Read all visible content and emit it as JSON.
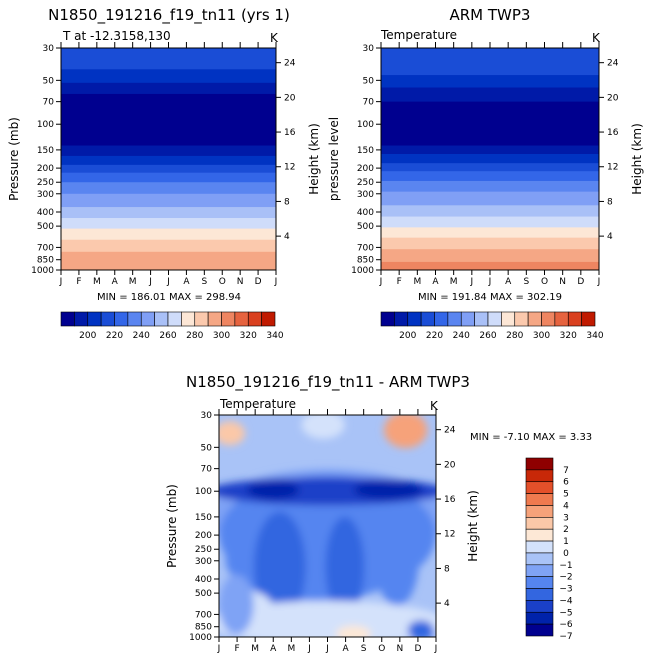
{
  "chart_data": [
    {
      "type": "heatmap",
      "title": "N1850_191216_f19_tn11 (yrs 1)",
      "subtitle": "T at -12.3158,130",
      "units": "K",
      "ylabel": "Pressure (mb)",
      "y2label": "Height (km)",
      "x_ticklabels": [
        "J",
        "F",
        "M",
        "A",
        "M",
        "J",
        "J",
        "A",
        "S",
        "O",
        "N",
        "D",
        "J"
      ],
      "y_ticklabels": [
        "30",
        "50",
        "70",
        "100",
        "150",
        "200",
        "250",
        "300",
        "400",
        "500",
        "700",
        "850",
        "1000"
      ],
      "y_tickvalues": [
        30,
        50,
        70,
        100,
        150,
        200,
        250,
        300,
        400,
        500,
        700,
        850,
        1000
      ],
      "height_ticklabels": [
        "4",
        "8",
        "12",
        "16",
        "20",
        "24"
      ],
      "height_tickvalues": [
        4,
        8,
        12,
        16,
        20,
        24
      ],
      "stats_text": "MIN = 186.01 MAX = 298.94",
      "min": 186.01,
      "max": 298.94,
      "colorbar": {
        "levels": [
          190,
          200,
          210,
          220,
          230,
          240,
          250,
          260,
          270,
          280,
          290,
          300,
          310,
          320,
          330,
          340
        ],
        "labels": [
          "200",
          "220",
          "240",
          "260",
          "280",
          "300",
          "320",
          "340"
        ]
      }
    },
    {
      "type": "heatmap",
      "title": "ARM TWP3",
      "subtitle": "Temperature",
      "units": "K",
      "ylabel": "pressure level",
      "y2label": "Height (km)",
      "x_ticklabels": [
        "J",
        "F",
        "M",
        "A",
        "M",
        "J",
        "J",
        "A",
        "S",
        "O",
        "N",
        "D",
        "J"
      ],
      "y_ticklabels": [
        "30",
        "50",
        "70",
        "100",
        "150",
        "200",
        "250",
        "300",
        "400",
        "500",
        "700",
        "850",
        "1000"
      ],
      "height_ticklabels": [
        "4",
        "8",
        "12",
        "16",
        "20",
        "24"
      ],
      "stats_text": "MIN = 191.84 MAX = 302.19",
      "min": 191.84,
      "max": 302.19,
      "colorbar": {
        "levels": [
          190,
          200,
          210,
          220,
          230,
          240,
          250,
          260,
          270,
          280,
          290,
          300,
          310,
          320,
          330,
          340
        ],
        "labels": [
          "200",
          "220",
          "240",
          "260",
          "280",
          "300",
          "320",
          "340"
        ]
      }
    },
    {
      "type": "heatmap",
      "title": "N1850_191216_f19_tn11 - ARM TWP3",
      "subtitle": "Temperature",
      "units": "K",
      "ylabel": "Pressure (mb)",
      "y2label": "Height (km)",
      "x_ticklabels": [
        "J",
        "F",
        "M",
        "A",
        "M",
        "J",
        "J",
        "A",
        "S",
        "O",
        "N",
        "D",
        "J"
      ],
      "y_ticklabels": [
        "30",
        "50",
        "70",
        "100",
        "150",
        "200",
        "250",
        "300",
        "400",
        "500",
        "700",
        "850",
        "1000"
      ],
      "height_ticklabels": [
        "4",
        "8",
        "12",
        "16",
        "20",
        "24"
      ],
      "stats_text": "MIN =   -7.10 MAX =    3.33",
      "min": -7.1,
      "max": 3.33,
      "colorbar": {
        "levels": [
          -7,
          -6,
          -5,
          -4,
          -3,
          -2,
          -1,
          0,
          1,
          2,
          3,
          4,
          5,
          6,
          7
        ],
        "labels": [
          "7",
          "6",
          "5",
          "4",
          "3",
          "2",
          "1",
          "0",
          "−1",
          "−2",
          "−3",
          "−4",
          "−5",
          "−6",
          "−7"
        ]
      }
    }
  ],
  "colors": {
    "abs_scale": [
      "#00008f",
      "#001aa8",
      "#0033c2",
      "#1a4dd6",
      "#3366e8",
      "#5a85f0",
      "#809ff5",
      "#a9c0f7",
      "#cfdcfa",
      "#fde7d6",
      "#fbc9ad",
      "#f5a785",
      "#ee8561",
      "#e6633f",
      "#d9401f",
      "#c01a00",
      "#8f0000"
    ],
    "diff_scale": [
      "#00008f",
      "#0022aa",
      "#1a40c8",
      "#3366e0",
      "#5585f0",
      "#7fa3f5",
      "#a9c3f7",
      "#d4e2fb",
      "#fde8d6",
      "#fbc8a8",
      "#f6a27a",
      "#ef7a4f",
      "#e4502a",
      "#c82808",
      "#8f0000"
    ]
  }
}
